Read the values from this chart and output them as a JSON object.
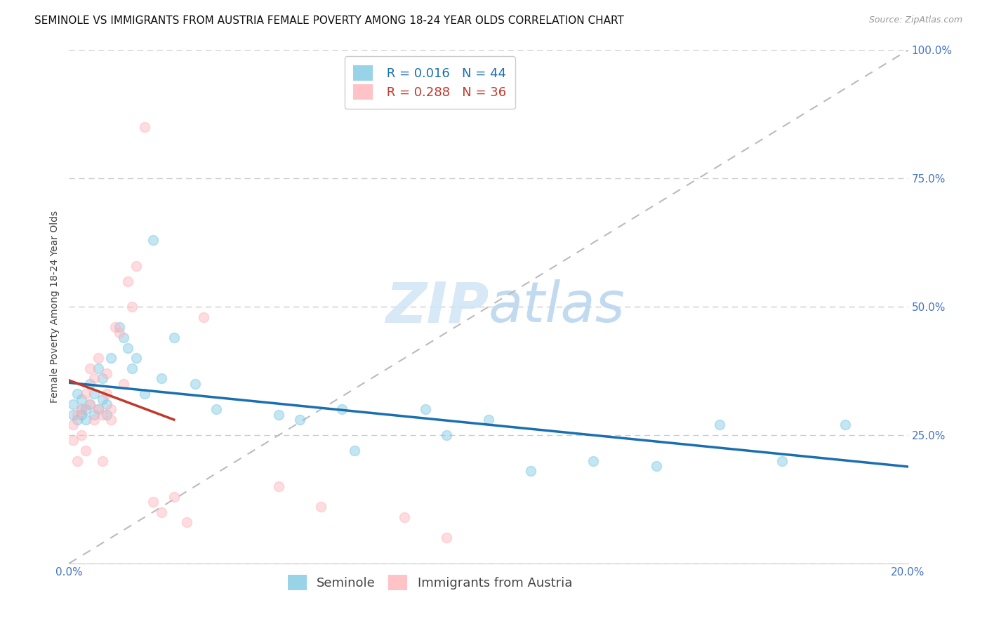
{
  "title": "SEMINOLE VS IMMIGRANTS FROM AUSTRIA FEMALE POVERTY AMONG 18-24 YEAR OLDS CORRELATION CHART",
  "source_text": "Source: ZipAtlas.com",
  "ylabel": "Female Poverty Among 18-24 Year Olds",
  "xlim": [
    0.0,
    0.2
  ],
  "ylim": [
    0.0,
    1.0
  ],
  "yticks": [
    0.0,
    0.25,
    0.5,
    0.75,
    1.0
  ],
  "right_ytick_labels": [
    "",
    "25.0%",
    "50.0%",
    "75.0%",
    "100.0%"
  ],
  "xticks": [
    0.0,
    0.05,
    0.1,
    0.15,
    0.2
  ],
  "xtick_labels": [
    "0.0%",
    "",
    "",
    "",
    "20.0%"
  ],
  "seminole_color": "#7ec8e3",
  "austria_color": "#ffb3ba",
  "trendline_seminole_color": "#1a6faf",
  "trendline_austria_color": "#c0392b",
  "legend_seminole_r": "0.016",
  "legend_seminole_n": "44",
  "legend_austria_r": "0.288",
  "legend_austria_n": "36",
  "background_color": "#ffffff",
  "grid_color": "#cccccc",
  "right_label_color": "#4472c4",
  "watermark_color": "#d0e4f5",
  "seminole_x": [
    0.001,
    0.001,
    0.002,
    0.002,
    0.003,
    0.003,
    0.003,
    0.004,
    0.004,
    0.005,
    0.005,
    0.006,
    0.006,
    0.007,
    0.007,
    0.008,
    0.008,
    0.009,
    0.009,
    0.01,
    0.012,
    0.013,
    0.014,
    0.015,
    0.016,
    0.018,
    0.02,
    0.022,
    0.025,
    0.03,
    0.035,
    0.05,
    0.055,
    0.065,
    0.068,
    0.085,
    0.09,
    0.1,
    0.11,
    0.125,
    0.14,
    0.155,
    0.17,
    0.185
  ],
  "seminole_y": [
    0.29,
    0.31,
    0.28,
    0.33,
    0.3,
    0.29,
    0.32,
    0.3,
    0.28,
    0.31,
    0.35,
    0.29,
    0.33,
    0.3,
    0.38,
    0.32,
    0.36,
    0.31,
    0.29,
    0.4,
    0.46,
    0.44,
    0.42,
    0.38,
    0.4,
    0.33,
    0.63,
    0.36,
    0.44,
    0.35,
    0.3,
    0.29,
    0.28,
    0.3,
    0.22,
    0.3,
    0.25,
    0.28,
    0.18,
    0.2,
    0.19,
    0.27,
    0.2,
    0.27
  ],
  "austria_x": [
    0.001,
    0.001,
    0.002,
    0.002,
    0.003,
    0.003,
    0.004,
    0.004,
    0.005,
    0.005,
    0.006,
    0.006,
    0.007,
    0.007,
    0.008,
    0.008,
    0.009,
    0.009,
    0.01,
    0.01,
    0.011,
    0.012,
    0.013,
    0.014,
    0.015,
    0.016,
    0.018,
    0.02,
    0.022,
    0.025,
    0.028,
    0.032,
    0.05,
    0.06,
    0.08,
    0.09
  ],
  "austria_y": [
    0.27,
    0.24,
    0.29,
    0.2,
    0.3,
    0.25,
    0.33,
    0.22,
    0.31,
    0.38,
    0.28,
    0.36,
    0.4,
    0.3,
    0.29,
    0.2,
    0.37,
    0.33,
    0.3,
    0.28,
    0.46,
    0.45,
    0.35,
    0.55,
    0.5,
    0.58,
    0.85,
    0.12,
    0.1,
    0.13,
    0.08,
    0.48,
    0.15,
    0.11,
    0.09,
    0.05
  ],
  "title_fontsize": 11,
  "axis_label_fontsize": 10,
  "tick_fontsize": 11,
  "legend_fontsize": 13,
  "marker_size": 100,
  "marker_alpha": 0.45
}
